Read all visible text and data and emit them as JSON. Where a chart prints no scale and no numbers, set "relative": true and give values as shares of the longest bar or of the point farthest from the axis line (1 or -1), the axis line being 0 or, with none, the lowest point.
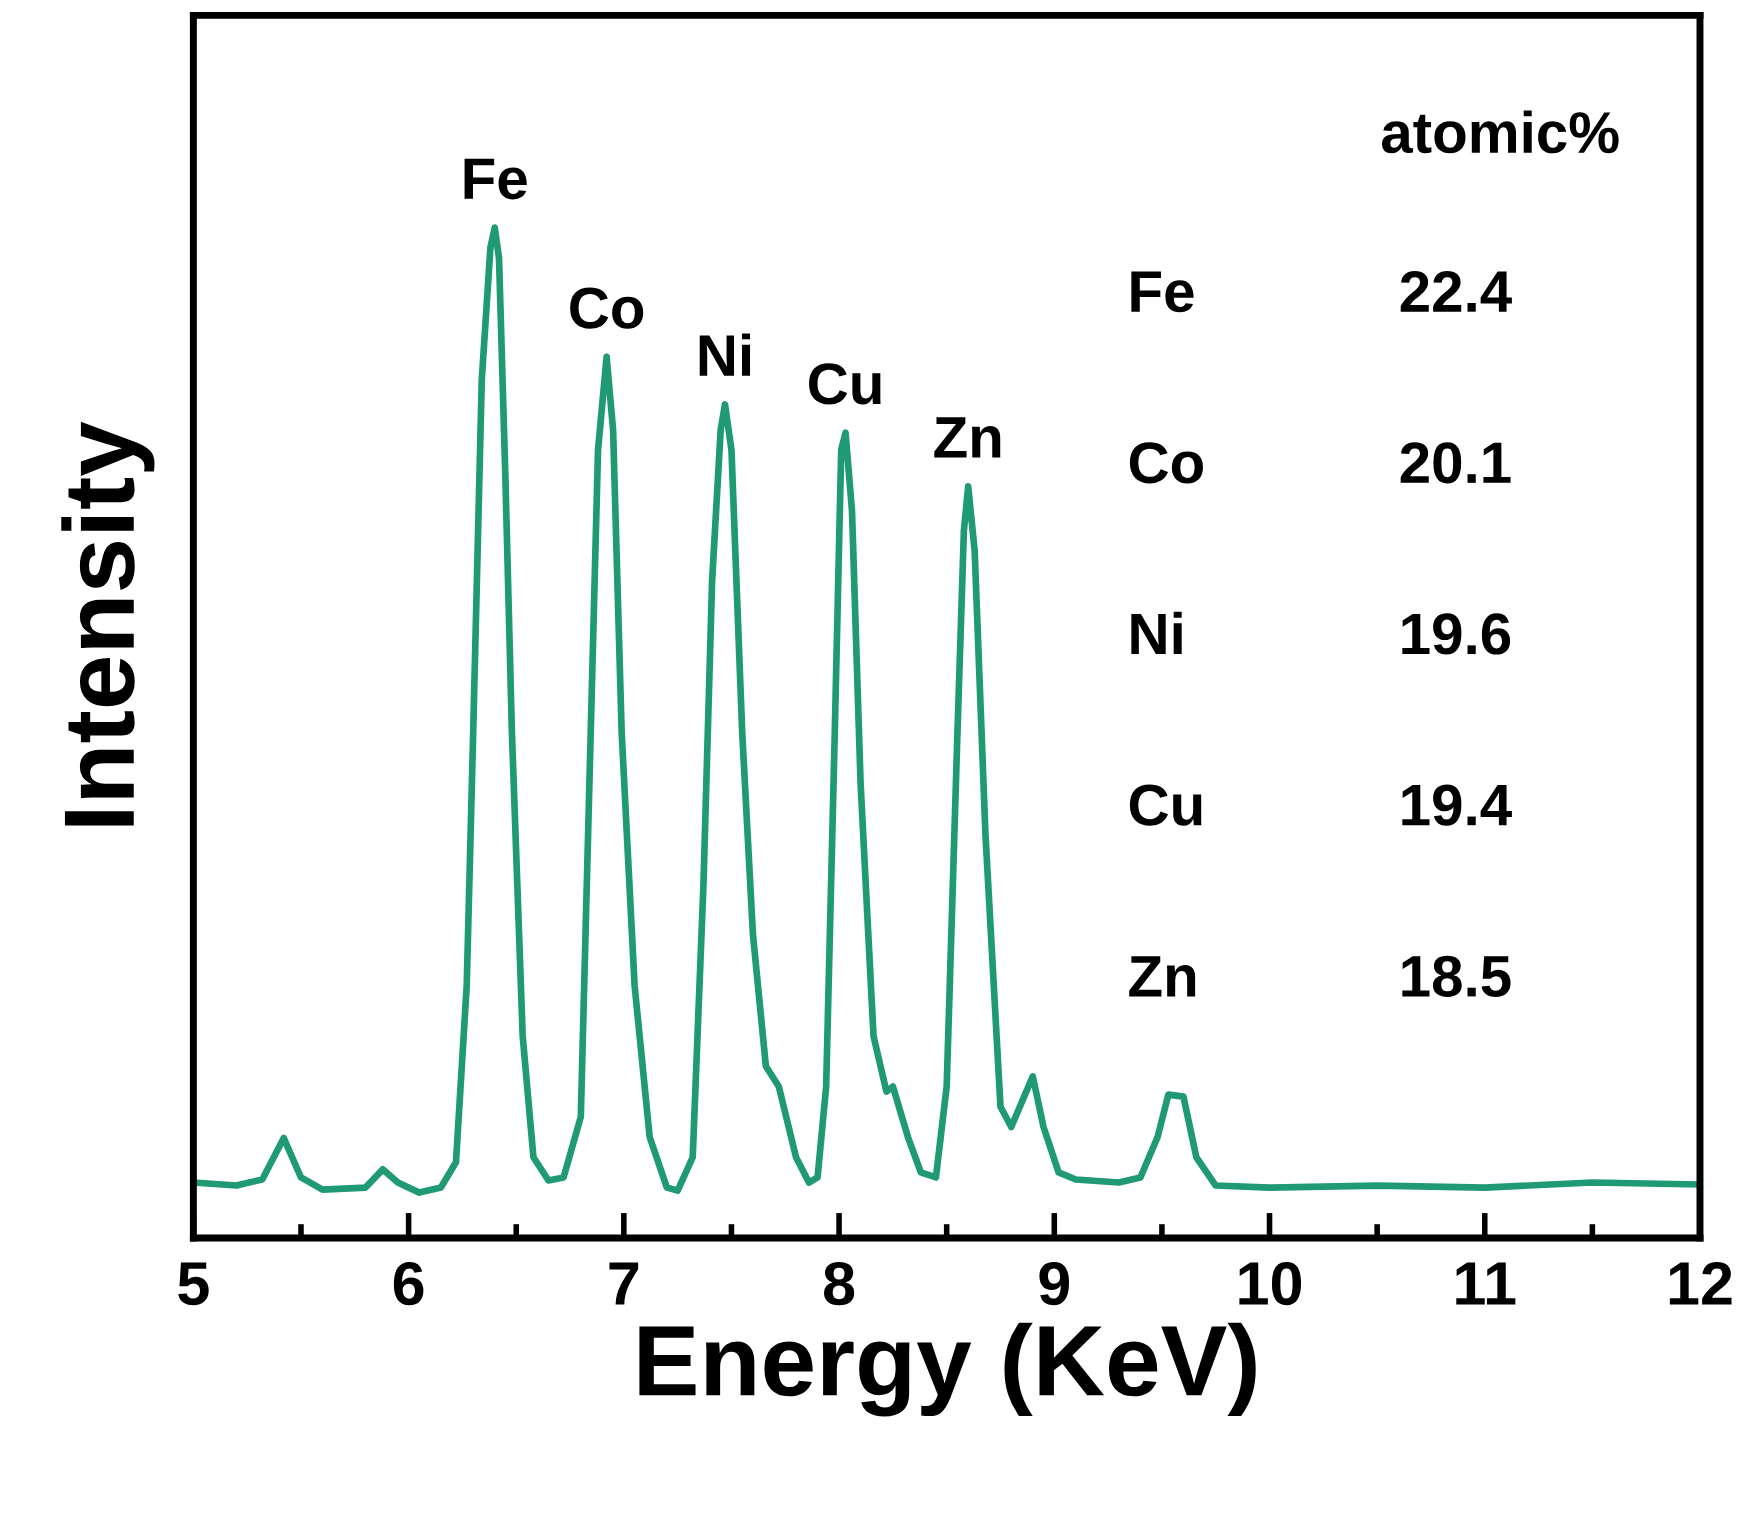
{
  "chart_data": {
    "type": "line",
    "xlabel": "Energy (KeV)",
    "ylabel": "Intensity",
    "relative": true,
    "xlim": [
      5,
      12
    ],
    "xticks": [
      5,
      6,
      7,
      8,
      9,
      10,
      11,
      12
    ],
    "grid": false,
    "legend": false,
    "marker": "none",
    "line_style": "solid",
    "tick_labels": "x",
    "series": [
      {
        "color": "#1f9a74",
        "x": [
          5.0,
          5.2,
          5.32,
          5.42,
          5.5,
          5.6,
          5.8,
          5.88,
          5.95,
          6.05,
          6.15,
          6.22,
          6.27,
          6.3,
          6.34,
          6.38,
          6.4,
          6.42,
          6.45,
          6.48,
          6.53,
          6.58,
          6.65,
          6.72,
          6.8,
          6.84,
          6.88,
          6.92,
          6.95,
          6.99,
          7.05,
          7.12,
          7.2,
          7.25,
          7.32,
          7.37,
          7.41,
          7.45,
          7.47,
          7.5,
          7.55,
          7.6,
          7.66,
          7.72,
          7.8,
          7.86,
          7.9,
          7.94,
          7.98,
          8.01,
          8.03,
          8.06,
          8.1,
          8.16,
          8.22,
          8.25,
          8.32,
          8.38,
          8.45,
          8.5,
          8.55,
          8.58,
          8.6,
          8.63,
          8.68,
          8.75,
          8.8,
          8.9,
          8.95,
          9.02,
          9.1,
          9.3,
          9.4,
          9.48,
          9.53,
          9.6,
          9.66,
          9.75,
          10.0,
          10.5,
          11.0,
          11.5,
          12.0
        ],
        "values": [
          0.055,
          0.052,
          0.058,
          0.099,
          0.06,
          0.048,
          0.05,
          0.068,
          0.055,
          0.045,
          0.05,
          0.075,
          0.25,
          0.5,
          0.85,
          0.98,
          1.0,
          0.97,
          0.75,
          0.5,
          0.2,
          0.08,
          0.057,
          0.06,
          0.12,
          0.45,
          0.78,
          0.872,
          0.8,
          0.5,
          0.25,
          0.1,
          0.05,
          0.047,
          0.08,
          0.35,
          0.65,
          0.8,
          0.825,
          0.78,
          0.5,
          0.3,
          0.17,
          0.15,
          0.08,
          0.055,
          0.06,
          0.15,
          0.5,
          0.78,
          0.797,
          0.72,
          0.45,
          0.2,
          0.145,
          0.15,
          0.1,
          0.065,
          0.06,
          0.15,
          0.5,
          0.7,
          0.744,
          0.68,
          0.4,
          0.13,
          0.11,
          0.16,
          0.11,
          0.065,
          0.058,
          0.055,
          0.06,
          0.1,
          0.142,
          0.14,
          0.08,
          0.052,
          0.05,
          0.052,
          0.05,
          0.055,
          0.053
        ]
      }
    ],
    "annotations": [
      {
        "text": "Fe",
        "x": 6.4,
        "y": 1.0
      },
      {
        "text": "Co",
        "x": 6.92,
        "y": 0.872
      },
      {
        "text": "Ni",
        "x": 7.47,
        "y": 0.825
      },
      {
        "text": "Cu",
        "x": 8.03,
        "y": 0.797
      },
      {
        "text": "Zn",
        "x": 8.6,
        "y": 0.744
      },
      "atomic%",
      "Fe",
      "22.4",
      "Co",
      "20.1",
      "Ni",
      "19.6",
      "Cu",
      "19.4",
      "Zn",
      "18.5"
    ]
  }
}
